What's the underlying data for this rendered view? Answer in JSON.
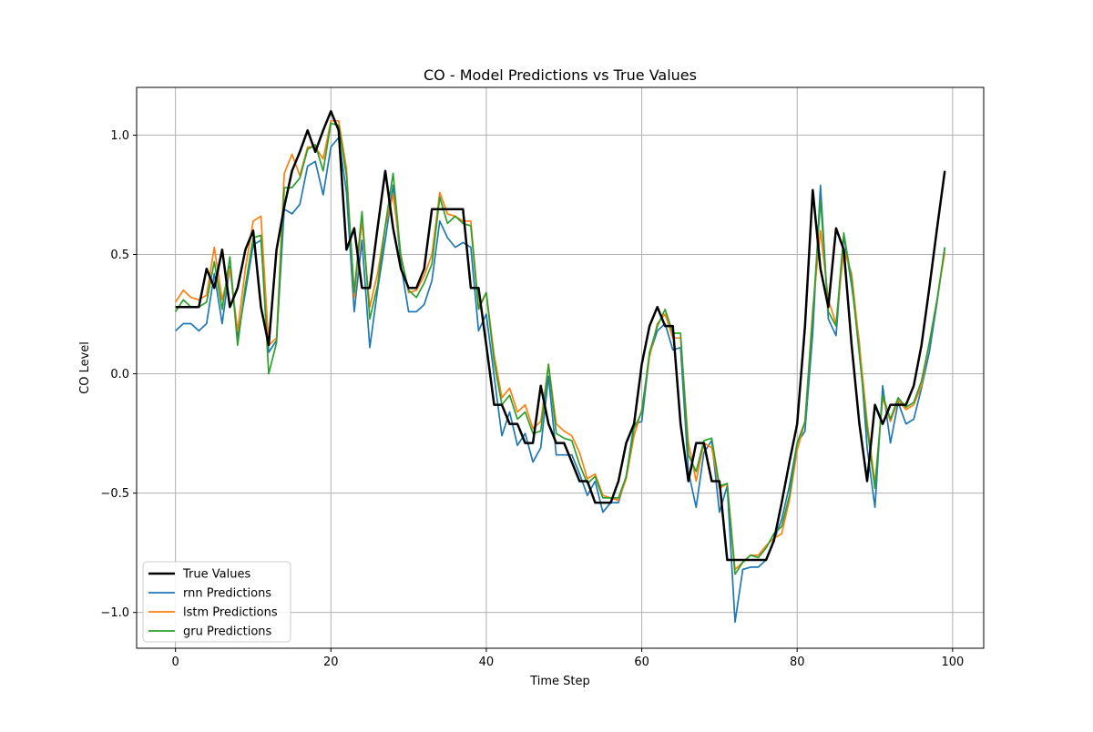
{
  "chart_data": {
    "type": "line",
    "title": "CO - Model Predictions vs True Values",
    "xlabel": "Time Step",
    "ylabel": "CO Level",
    "xlim": [
      -5,
      104
    ],
    "ylim": [
      -1.15,
      1.2
    ],
    "xticks": [
      0,
      20,
      40,
      60,
      80,
      100
    ],
    "yticks": [
      -1.0,
      -0.5,
      0.0,
      0.5,
      1.0
    ],
    "xtick_labels": [
      "0",
      "20",
      "40",
      "60",
      "80",
      "100"
    ],
    "ytick_labels": [
      "−1.0",
      "−0.5",
      "0.0",
      "0.5",
      "1.0"
    ],
    "grid": true,
    "legend_position": "lower-left",
    "x": [
      0,
      1,
      2,
      3,
      4,
      5,
      6,
      7,
      8,
      9,
      10,
      11,
      12,
      13,
      14,
      15,
      16,
      17,
      18,
      19,
      20,
      21,
      22,
      23,
      24,
      25,
      26,
      27,
      28,
      29,
      30,
      31,
      32,
      33,
      34,
      35,
      36,
      37,
      38,
      39,
      40,
      41,
      42,
      43,
      44,
      45,
      46,
      47,
      48,
      49,
      50,
      51,
      52,
      53,
      54,
      55,
      56,
      57,
      58,
      59,
      60,
      61,
      62,
      63,
      64,
      65,
      66,
      67,
      68,
      69,
      70,
      71,
      72,
      73,
      74,
      75,
      76,
      77,
      78,
      79,
      80,
      81,
      82,
      83,
      84,
      85,
      86,
      87,
      88,
      89,
      90,
      91,
      92,
      93,
      94,
      95,
      96,
      97,
      98,
      99
    ],
    "series": [
      {
        "name": "True Values",
        "color": "#000000",
        "width": 2.5,
        "values": [
          0.28,
          0.28,
          0.28,
          0.28,
          0.44,
          0.36,
          0.52,
          0.28,
          0.36,
          0.52,
          0.6,
          0.28,
          0.12,
          0.52,
          0.7,
          0.85,
          0.93,
          1.02,
          0.93,
          1.02,
          1.1,
          1.02,
          0.52,
          0.61,
          0.36,
          0.36,
          0.61,
          0.85,
          0.61,
          0.44,
          0.36,
          0.36,
          0.44,
          0.69,
          0.69,
          0.69,
          0.69,
          0.69,
          0.36,
          0.36,
          0.12,
          -0.13,
          -0.13,
          -0.21,
          -0.21,
          -0.29,
          -0.29,
          -0.05,
          -0.21,
          -0.29,
          -0.29,
          -0.37,
          -0.45,
          -0.45,
          -0.54,
          -0.54,
          -0.54,
          -0.45,
          -0.29,
          -0.21,
          0.04,
          0.2,
          0.28,
          0.2,
          0.2,
          -0.21,
          -0.45,
          -0.29,
          -0.29,
          -0.45,
          -0.45,
          -0.78,
          -0.78,
          -0.78,
          -0.78,
          -0.78,
          -0.78,
          -0.7,
          -0.54,
          -0.37,
          -0.21,
          0.2,
          0.77,
          0.44,
          0.28,
          0.61,
          0.52,
          0.12,
          -0.21,
          -0.45,
          -0.13,
          -0.21,
          -0.13,
          -0.13,
          -0.13,
          -0.05,
          0.12,
          0.36,
          0.61,
          0.85
        ]
      },
      {
        "name": "rnn Predictions",
        "color": "#1f77b4",
        "width": 1.7,
        "values": [
          0.18,
          0.21,
          0.21,
          0.18,
          0.21,
          0.42,
          0.21,
          0.45,
          0.15,
          0.34,
          0.54,
          0.56,
          0.09,
          0.14,
          0.69,
          0.67,
          0.71,
          0.87,
          0.89,
          0.75,
          0.95,
          0.99,
          0.76,
          0.26,
          0.56,
          0.11,
          0.35,
          0.56,
          0.79,
          0.46,
          0.26,
          0.26,
          0.29,
          0.39,
          0.64,
          0.57,
          0.53,
          0.55,
          0.53,
          0.18,
          0.25,
          -0.01,
          -0.26,
          -0.16,
          -0.3,
          -0.25,
          -0.37,
          -0.31,
          -0.01,
          -0.34,
          -0.34,
          -0.34,
          -0.42,
          -0.51,
          -0.45,
          -0.58,
          -0.54,
          -0.54,
          -0.43,
          -0.21,
          -0.2,
          0.08,
          0.18,
          0.21,
          0.1,
          0.11,
          -0.41,
          -0.56,
          -0.33,
          -0.28,
          -0.58,
          -0.47,
          -1.04,
          -0.82,
          -0.81,
          -0.81,
          -0.78,
          -0.7,
          -0.61,
          -0.47,
          -0.29,
          -0.24,
          0.17,
          0.79,
          0.23,
          0.16,
          0.58,
          0.37,
          0.13,
          -0.31,
          -0.56,
          -0.05,
          -0.29,
          -0.12,
          -0.21,
          -0.19,
          -0.06,
          0.09,
          0.3,
          0.53
        ]
      },
      {
        "name": "lstm Predictions",
        "color": "#ff7f0e",
        "width": 1.7,
        "values": [
          0.3,
          0.35,
          0.32,
          0.31,
          0.33,
          0.53,
          0.31,
          0.44,
          0.18,
          0.44,
          0.64,
          0.66,
          0.12,
          0.15,
          0.84,
          0.92,
          0.83,
          0.95,
          0.95,
          0.9,
          1.06,
          1.06,
          0.86,
          0.32,
          0.64,
          0.28,
          0.42,
          0.62,
          0.75,
          0.5,
          0.34,
          0.35,
          0.41,
          0.5,
          0.76,
          0.67,
          0.66,
          0.64,
          0.64,
          0.28,
          0.34,
          0.08,
          -0.1,
          -0.06,
          -0.16,
          -0.13,
          -0.23,
          -0.2,
          0.04,
          -0.21,
          -0.24,
          -0.26,
          -0.33,
          -0.44,
          -0.42,
          -0.51,
          -0.52,
          -0.53,
          -0.44,
          -0.26,
          -0.15,
          0.07,
          0.21,
          0.25,
          0.15,
          0.15,
          -0.29,
          -0.45,
          -0.29,
          -0.31,
          -0.48,
          -0.46,
          -0.82,
          -0.79,
          -0.76,
          -0.76,
          -0.72,
          -0.69,
          -0.67,
          -0.53,
          -0.32,
          -0.2,
          0.27,
          0.6,
          0.31,
          0.21,
          0.52,
          0.42,
          0.12,
          -0.2,
          -0.46,
          -0.1,
          -0.2,
          -0.11,
          -0.15,
          -0.13,
          -0.05,
          0.13,
          0.31,
          0.51
        ]
      },
      {
        "name": "gru Predictions",
        "color": "#2ca02c",
        "width": 1.7,
        "values": [
          0.26,
          0.31,
          0.28,
          0.28,
          0.3,
          0.47,
          0.27,
          0.49,
          0.12,
          0.37,
          0.57,
          0.58,
          0.0,
          0.13,
          0.78,
          0.78,
          0.82,
          0.94,
          0.96,
          0.85,
          1.05,
          1.04,
          0.83,
          0.34,
          0.68,
          0.23,
          0.37,
          0.62,
          0.84,
          0.49,
          0.35,
          0.32,
          0.38,
          0.46,
          0.74,
          0.63,
          0.66,
          0.63,
          0.62,
          0.27,
          0.34,
          0.05,
          -0.13,
          -0.09,
          -0.19,
          -0.16,
          -0.25,
          -0.24,
          0.04,
          -0.25,
          -0.27,
          -0.28,
          -0.38,
          -0.46,
          -0.43,
          -0.52,
          -0.52,
          -0.52,
          -0.43,
          -0.23,
          -0.16,
          0.09,
          0.2,
          0.27,
          0.17,
          0.17,
          -0.34,
          -0.41,
          -0.28,
          -0.27,
          -0.47,
          -0.46,
          -0.84,
          -0.79,
          -0.76,
          -0.77,
          -0.73,
          -0.67,
          -0.64,
          -0.51,
          -0.29,
          -0.2,
          0.24,
          0.73,
          0.26,
          0.2,
          0.59,
          0.39,
          0.08,
          -0.23,
          -0.48,
          -0.09,
          -0.19,
          -0.1,
          -0.14,
          -0.12,
          -0.03,
          0.13,
          0.31,
          0.53
        ]
      }
    ]
  }
}
